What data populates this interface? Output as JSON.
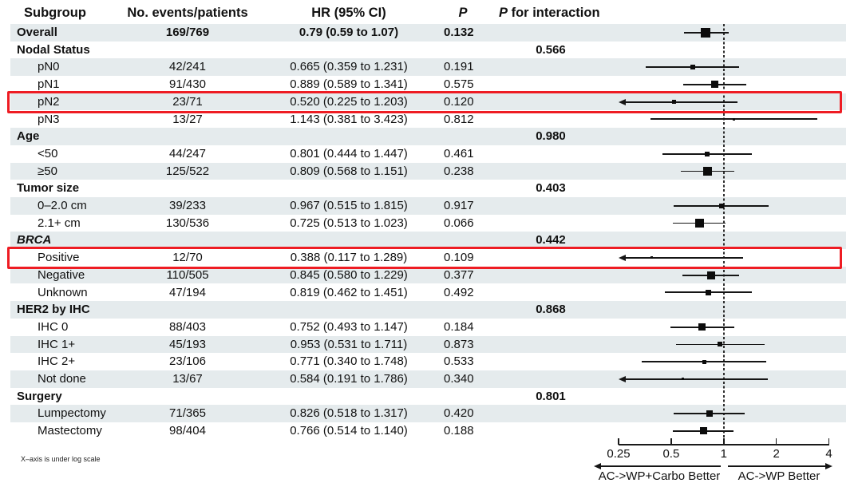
{
  "figure": {
    "columns": {
      "subgroup": "Subgroup",
      "events": "No. events/patients",
      "hr_ci": "HR (95% CI)",
      "p": "P",
      "p_interaction_p": "P",
      "p_interaction_rest": "for interaction"
    },
    "footnote": "X–axis is under log scale",
    "direction_left": "AC->WP+Carbo Better",
    "direction_right": "AC->WP Better",
    "colors": {
      "row_shade": "#e5ebed",
      "highlight_red": "#ee1c23",
      "ink": "#111111"
    }
  },
  "chart_data": {
    "type": "forest",
    "x_scale": "log",
    "x_ticks": [
      0.25,
      0.5,
      1,
      2,
      4
    ],
    "x_range": [
      0.25,
      4
    ],
    "ref_line": 1,
    "rows": [
      {
        "label": "Overall",
        "level": "overall",
        "events": "169/769",
        "hr_ci": "0.79 (0.59 to 1.07)",
        "p": "0.132",
        "p_interaction": "",
        "hr": 0.79,
        "lo": 0.59,
        "hi": 1.07,
        "n_events": 169,
        "highlight": false,
        "italic": false
      },
      {
        "label": "Nodal Status",
        "level": "section",
        "events": "",
        "hr_ci": "",
        "p": "",
        "p_interaction": "0.566",
        "hr": null,
        "lo": null,
        "hi": null,
        "n_events": null,
        "highlight": false,
        "italic": false
      },
      {
        "label": "pN0",
        "level": "item",
        "events": "42/241",
        "hr_ci": "0.665 (0.359 to 1.231)",
        "p": "0.191",
        "p_interaction": "",
        "hr": 0.665,
        "lo": 0.359,
        "hi": 1.231,
        "n_events": 42,
        "highlight": false,
        "italic": false
      },
      {
        "label": "pN1",
        "level": "item",
        "events": "91/430",
        "hr_ci": "0.889 (0.589 to 1.341)",
        "p": "0.575",
        "p_interaction": "",
        "hr": 0.889,
        "lo": 0.589,
        "hi": 1.341,
        "n_events": 91,
        "highlight": false,
        "italic": false
      },
      {
        "label": "pN2",
        "level": "item",
        "events": "23/71",
        "hr_ci": "0.520 (0.225 to 1.203)",
        "p": "0.120",
        "p_interaction": "",
        "hr": 0.52,
        "lo": 0.225,
        "hi": 1.203,
        "n_events": 23,
        "highlight": true,
        "italic": false
      },
      {
        "label": "pN3",
        "level": "item",
        "events": "13/27",
        "hr_ci": "1.143 (0.381 to 3.423)",
        "p": "0.812",
        "p_interaction": "",
        "hr": 1.143,
        "lo": 0.381,
        "hi": 3.423,
        "n_events": 13,
        "highlight": false,
        "italic": false
      },
      {
        "label": "Age",
        "level": "section",
        "events": "",
        "hr_ci": "",
        "p": "",
        "p_interaction": "0.980",
        "hr": null,
        "lo": null,
        "hi": null,
        "n_events": null,
        "highlight": false,
        "italic": false
      },
      {
        "label": "<50",
        "level": "item",
        "events": "44/247",
        "hr_ci": "0.801 (0.444 to 1.447)",
        "p": "0.461",
        "p_interaction": "",
        "hr": 0.801,
        "lo": 0.444,
        "hi": 1.447,
        "n_events": 44,
        "highlight": false,
        "italic": false
      },
      {
        "label": "≥50",
        "level": "item",
        "events": "125/522",
        "hr_ci": "0.809 (0.568 to 1.151)",
        "p": "0.238",
        "p_interaction": "",
        "hr": 0.809,
        "lo": 0.568,
        "hi": 1.151,
        "n_events": 125,
        "highlight": false,
        "italic": false
      },
      {
        "label": "Tumor size",
        "level": "section",
        "events": "",
        "hr_ci": "",
        "p": "",
        "p_interaction": "0.403",
        "hr": null,
        "lo": null,
        "hi": null,
        "n_events": null,
        "highlight": false,
        "italic": false
      },
      {
        "label": "0–2.0 cm",
        "level": "item",
        "events": "39/233",
        "hr_ci": "0.967 (0.515 to 1.815)",
        "p": "0.917",
        "p_interaction": "",
        "hr": 0.967,
        "lo": 0.515,
        "hi": 1.815,
        "n_events": 39,
        "highlight": false,
        "italic": false
      },
      {
        "label": "2.1+ cm",
        "level": "item",
        "events": "130/536",
        "hr_ci": "0.725 (0.513 to 1.023)",
        "p": "0.066",
        "p_interaction": "",
        "hr": 0.725,
        "lo": 0.513,
        "hi": 1.023,
        "n_events": 130,
        "highlight": false,
        "italic": false
      },
      {
        "label": "BRCA",
        "level": "section",
        "events": "",
        "hr_ci": "",
        "p": "",
        "p_interaction": "0.442",
        "hr": null,
        "lo": null,
        "hi": null,
        "n_events": null,
        "highlight": false,
        "italic": true
      },
      {
        "label": "Positive",
        "level": "item",
        "events": "12/70",
        "hr_ci": "0.388 (0.117 to 1.289)",
        "p": "0.109",
        "p_interaction": "",
        "hr": 0.388,
        "lo": 0.117,
        "hi": 1.289,
        "n_events": 12,
        "highlight": true,
        "italic": false
      },
      {
        "label": "Negative",
        "level": "item",
        "events": "110/505",
        "hr_ci": "0.845 (0.580 to 1.229)",
        "p": "0.377",
        "p_interaction": "",
        "hr": 0.845,
        "lo": 0.58,
        "hi": 1.229,
        "n_events": 110,
        "highlight": false,
        "italic": false
      },
      {
        "label": "Unknown",
        "level": "item",
        "events": "47/194",
        "hr_ci": "0.819 (0.462 to 1.451)",
        "p": "0.492",
        "p_interaction": "",
        "hr": 0.819,
        "lo": 0.462,
        "hi": 1.451,
        "n_events": 47,
        "highlight": false,
        "italic": false
      },
      {
        "label": "HER2 by IHC",
        "level": "section",
        "events": "",
        "hr_ci": "",
        "p": "",
        "p_interaction": "0.868",
        "hr": null,
        "lo": null,
        "hi": null,
        "n_events": null,
        "highlight": false,
        "italic": false
      },
      {
        "label": "IHC 0",
        "level": "item",
        "events": "88/403",
        "hr_ci": "0.752 (0.493 to 1.147)",
        "p": "0.184",
        "p_interaction": "",
        "hr": 0.752,
        "lo": 0.493,
        "hi": 1.147,
        "n_events": 88,
        "highlight": false,
        "italic": false
      },
      {
        "label": "IHC 1+",
        "level": "item",
        "events": "45/193",
        "hr_ci": "0.953 (0.531 to 1.711)",
        "p": "0.873",
        "p_interaction": "",
        "hr": 0.953,
        "lo": 0.531,
        "hi": 1.711,
        "n_events": 45,
        "highlight": false,
        "italic": false
      },
      {
        "label": "IHC 2+",
        "level": "item",
        "events": "23/106",
        "hr_ci": "0.771 (0.340 to 1.748)",
        "p": "0.533",
        "p_interaction": "",
        "hr": 0.771,
        "lo": 0.34,
        "hi": 1.748,
        "n_events": 23,
        "highlight": false,
        "italic": false
      },
      {
        "label": "Not done",
        "level": "item",
        "events": "13/67",
        "hr_ci": "0.584 (0.191 to 1.786)",
        "p": "0.340",
        "p_interaction": "",
        "hr": 0.584,
        "lo": 0.191,
        "hi": 1.786,
        "n_events": 13,
        "highlight": false,
        "italic": false
      },
      {
        "label": "Surgery",
        "level": "section",
        "events": "",
        "hr_ci": "",
        "p": "",
        "p_interaction": "0.801",
        "hr": null,
        "lo": null,
        "hi": null,
        "n_events": null,
        "highlight": false,
        "italic": false
      },
      {
        "label": "Lumpectomy",
        "level": "item",
        "events": "71/365",
        "hr_ci": "0.826 (0.518 to 1.317)",
        "p": "0.420",
        "p_interaction": "",
        "hr": 0.826,
        "lo": 0.518,
        "hi": 1.317,
        "n_events": 71,
        "highlight": false,
        "italic": false
      },
      {
        "label": "Mastectomy",
        "level": "item",
        "events": "98/404",
        "hr_ci": "0.766 (0.514 to 1.140)",
        "p": "0.188",
        "p_interaction": "",
        "hr": 0.766,
        "lo": 0.514,
        "hi": 1.14,
        "n_events": 98,
        "highlight": false,
        "italic": false
      }
    ]
  }
}
